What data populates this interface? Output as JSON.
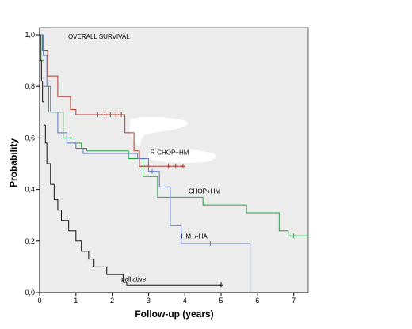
{
  "chart_data": {
    "type": "line",
    "title": "OVERALL SURVIVAL",
    "xlabel": "Follow-up (years)",
    "ylabel": "Probability",
    "xlim": [
      0,
      7.4
    ],
    "ylim": [
      0,
      1.0
    ],
    "xticks": [
      "0",
      "1",
      "2",
      "3",
      "4",
      "5",
      "6",
      "7"
    ],
    "yticks": [
      "0,0",
      "0,2",
      "0,4",
      "0,6",
      "0,8",
      "1,0"
    ],
    "grid": false,
    "colors": {
      "plot_background": "#ececec",
      "R-CHOP+HM": "#b03a2e",
      "CHOP+HM": "#2e9e4a",
      "HM+/-HA": "#5b74c0",
      "palliative": "#111111"
    },
    "series": [
      {
        "name": "R-CHOP+HM",
        "steps": [
          [
            0,
            1.0
          ],
          [
            0.08,
            0.94
          ],
          [
            0.22,
            0.84
          ],
          [
            0.5,
            0.76
          ],
          [
            0.85,
            0.71
          ],
          [
            1.0,
            0.69
          ],
          [
            2.35,
            0.62
          ],
          [
            2.6,
            0.55
          ],
          [
            2.75,
            0.49
          ],
          [
            4.0,
            0.49
          ]
        ],
        "censored": [
          [
            1.6,
            0.69
          ],
          [
            1.8,
            0.69
          ],
          [
            1.95,
            0.69
          ],
          [
            2.1,
            0.69
          ],
          [
            2.25,
            0.69
          ],
          [
            2.85,
            0.49
          ],
          [
            3.0,
            0.49
          ],
          [
            3.55,
            0.49
          ],
          [
            3.75,
            0.49
          ],
          [
            3.95,
            0.49
          ]
        ]
      },
      {
        "name": "CHOP+HM",
        "steps": [
          [
            0,
            1.0
          ],
          [
            0.04,
            0.9
          ],
          [
            0.12,
            0.8
          ],
          [
            0.25,
            0.7
          ],
          [
            0.65,
            0.6
          ],
          [
            0.95,
            0.58
          ],
          [
            1.15,
            0.56
          ],
          [
            1.3,
            0.55
          ],
          [
            2.45,
            0.52
          ],
          [
            2.85,
            0.45
          ],
          [
            3.25,
            0.37
          ],
          [
            4.5,
            0.34
          ],
          [
            5.7,
            0.31
          ],
          [
            6.6,
            0.24
          ],
          [
            6.85,
            0.22
          ],
          [
            7.4,
            0.22
          ]
        ],
        "censored": [
          [
            7.0,
            0.22
          ]
        ]
      },
      {
        "name": "HM+/-HA",
        "steps": [
          [
            0,
            1.0
          ],
          [
            0.1,
            0.92
          ],
          [
            0.2,
            0.8
          ],
          [
            0.3,
            0.7
          ],
          [
            0.5,
            0.62
          ],
          [
            0.75,
            0.58
          ],
          [
            1.0,
            0.56
          ],
          [
            1.2,
            0.54
          ],
          [
            2.7,
            0.52
          ],
          [
            3.0,
            0.47
          ],
          [
            3.3,
            0.41
          ],
          [
            3.6,
            0.26
          ],
          [
            3.9,
            0.19
          ],
          [
            5.8,
            0.0
          ]
        ],
        "censored": [
          [
            3.1,
            0.47
          ],
          [
            4.7,
            0.19
          ]
        ]
      },
      {
        "name": "palliative",
        "steps": [
          [
            0,
            1.0
          ],
          [
            0.02,
            0.9
          ],
          [
            0.05,
            0.82
          ],
          [
            0.08,
            0.74
          ],
          [
            0.12,
            0.65
          ],
          [
            0.16,
            0.58
          ],
          [
            0.2,
            0.5
          ],
          [
            0.3,
            0.42
          ],
          [
            0.4,
            0.36
          ],
          [
            0.5,
            0.32
          ],
          [
            0.6,
            0.28
          ],
          [
            0.8,
            0.24
          ],
          [
            1.0,
            0.2
          ],
          [
            1.15,
            0.16
          ],
          [
            1.35,
            0.13
          ],
          [
            1.5,
            0.1
          ],
          [
            1.85,
            0.07
          ],
          [
            2.3,
            0.04
          ],
          [
            2.4,
            0.03
          ],
          [
            5.0,
            0.03
          ]
        ],
        "censored": [
          [
            5.0,
            0.03
          ]
        ]
      }
    ],
    "annotations": [
      {
        "text": "R-CHOP+HM",
        "x": 3.05,
        "y": 0.535
      },
      {
        "text": "CHOP+HM",
        "x": 4.1,
        "y": 0.385
      },
      {
        "text": "HM+/-HA",
        "x": 3.9,
        "y": 0.21
      },
      {
        "text": "palliative",
        "x": 2.25,
        "y": 0.045
      }
    ]
  }
}
